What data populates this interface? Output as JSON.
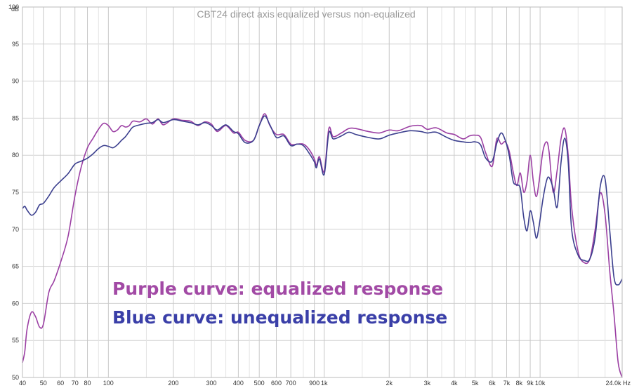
{
  "chart_data": {
    "type": "line",
    "title": "CBT24 direct axis equalized versus non-equalized",
    "x_scale": "log",
    "xlim": [
      40,
      24000
    ],
    "ylim": [
      50,
      100
    ],
    "grid": true,
    "ylabel": "dB",
    "xunit": "Hz",
    "y_ticks": [
      "100",
      "95",
      "90",
      "85",
      "80",
      "75",
      "70",
      "65",
      "60",
      "55",
      "50"
    ],
    "x_ticks": [
      {
        "value": 40,
        "label": "40"
      },
      {
        "value": 50,
        "label": "50"
      },
      {
        "value": 60,
        "label": "60"
      },
      {
        "value": 70,
        "label": "70"
      },
      {
        "value": 80,
        "label": "80"
      },
      {
        "value": 100,
        "label": "100"
      },
      {
        "value": 200,
        "label": "200"
      },
      {
        "value": 300,
        "label": "300"
      },
      {
        "value": 400,
        "label": "400"
      },
      {
        "value": 500,
        "label": "500"
      },
      {
        "value": 600,
        "label": "600"
      },
      {
        "value": 700,
        "label": "700"
      },
      {
        "value": 900,
        "label": "900"
      },
      {
        "value": 1000,
        "label": "1k"
      },
      {
        "value": 2000,
        "label": "2k"
      },
      {
        "value": 3000,
        "label": "3k"
      },
      {
        "value": 4000,
        "label": "4k"
      },
      {
        "value": 5000,
        "label": "5k"
      },
      {
        "value": 6000,
        "label": "6k"
      },
      {
        "value": 7000,
        "label": "7k"
      },
      {
        "value": 8000,
        "label": "8k"
      },
      {
        "value": 9000,
        "label": "9k"
      },
      {
        "value": 10000,
        "label": "10k"
      },
      {
        "value": 24000,
        "label": "24.0k Hz"
      }
    ],
    "minor_x_gridlines": [
      45,
      90,
      150,
      250,
      350,
      450,
      800,
      1500,
      2500,
      3500,
      4500,
      15000,
      20000
    ],
    "annotations": [
      {
        "text": "Purple curve: equalized response",
        "color": "#a24aa5"
      },
      {
        "text": "Blue curve: unequalized response",
        "color": "#3a3fa8"
      }
    ],
    "series": [
      {
        "color": "#9b3fa3",
        "x": [
          40,
          41,
          42,
          44,
          46,
          48,
          50,
          53,
          56,
          60,
          65,
          70,
          75,
          80,
          85,
          90,
          95,
          100,
          105,
          110,
          115,
          120,
          125,
          130,
          140,
          150,
          160,
          170,
          180,
          200,
          220,
          240,
          260,
          280,
          300,
          320,
          350,
          380,
          400,
          430,
          470,
          500,
          530,
          560,
          600,
          650,
          700,
          750,
          800,
          850,
          900,
          920,
          950,
          1000,
          1050,
          1100,
          1200,
          1300,
          1400,
          1600,
          1800,
          2000,
          2200,
          2500,
          2800,
          3000,
          3300,
          3700,
          4000,
          4400,
          4700,
          5000,
          5300,
          5600,
          6000,
          6300,
          6600,
          6900,
          7200,
          7500,
          7800,
          8100,
          8400,
          8700,
          9000,
          9300,
          9600,
          9900,
          10300,
          10700,
          11000,
          11500,
          12000,
          12500,
          13000,
          13500,
          14000,
          15000,
          16000,
          17000,
          18000,
          19000,
          20000,
          21000,
          22000,
          23000,
          24000
        ],
        "y": [
          52.0,
          53.5,
          56.5,
          58.8,
          58.2,
          56.8,
          57.2,
          61.5,
          63.0,
          65.5,
          69.0,
          74.5,
          78.5,
          81.0,
          82.3,
          83.5,
          84.3,
          84.0,
          83.2,
          83.4,
          84.0,
          83.8,
          84.0,
          84.6,
          84.5,
          84.9,
          84.2,
          84.9,
          84.1,
          84.9,
          84.7,
          84.6,
          84.0,
          84.5,
          84.2,
          83.2,
          84.0,
          83.0,
          83.1,
          82.0,
          82.0,
          84.0,
          85.6,
          84.0,
          82.8,
          82.8,
          81.5,
          81.5,
          81.5,
          80.8,
          79.5,
          78.6,
          79.8,
          77.8,
          83.6,
          82.5,
          83.0,
          83.6,
          83.6,
          83.2,
          83.0,
          83.4,
          83.3,
          83.9,
          84.0,
          83.5,
          83.7,
          83.0,
          82.8,
          82.2,
          82.6,
          82.7,
          82.4,
          80.3,
          78.5,
          82.2,
          81.5,
          81.8,
          80.5,
          77.8,
          75.9,
          77.6,
          75.0,
          76.5,
          80.0,
          76.5,
          74.4,
          76.5,
          80.5,
          81.8,
          80.5,
          75.0,
          78.0,
          82.2,
          83.6,
          80.0,
          73.0,
          67.0,
          65.5,
          66.0,
          70.0,
          74.9,
          72.0,
          64.5,
          58.5,
          52.0,
          50.0
        ]
      },
      {
        "color": "#3b3f8e",
        "x": [
          40,
          41,
          42,
          44,
          46,
          48,
          50,
          53,
          56,
          60,
          65,
          70,
          75,
          80,
          85,
          90,
          95,
          100,
          105,
          110,
          115,
          120,
          125,
          130,
          140,
          150,
          160,
          170,
          180,
          200,
          220,
          240,
          260,
          280,
          300,
          320,
          350,
          380,
          400,
          430,
          470,
          500,
          530,
          560,
          600,
          650,
          700,
          750,
          800,
          850,
          900,
          920,
          950,
          1000,
          1050,
          1100,
          1200,
          1300,
          1400,
          1600,
          1800,
          2000,
          2200,
          2500,
          2800,
          3000,
          3300,
          3700,
          4000,
          4400,
          4700,
          5000,
          5300,
          5600,
          6000,
          6300,
          6600,
          6900,
          7200,
          7500,
          7800,
          8100,
          8400,
          8700,
          9000,
          9300,
          9600,
          9900,
          10300,
          10700,
          11000,
          11500,
          12000,
          12500,
          13000,
          13500,
          14000,
          15000,
          16000,
          17000,
          18000,
          19000,
          20000,
          21000,
          22000,
          23000,
          24000
        ],
        "y": [
          72.8,
          73.1,
          72.6,
          71.9,
          72.3,
          73.3,
          73.5,
          74.5,
          75.6,
          76.5,
          77.5,
          78.8,
          79.2,
          79.6,
          80.2,
          80.9,
          81.3,
          81.2,
          81.0,
          81.4,
          82.0,
          82.5,
          83.2,
          83.8,
          84.1,
          84.3,
          84.4,
          84.8,
          84.4,
          84.8,
          84.6,
          84.4,
          84.1,
          84.4,
          84.0,
          83.4,
          84.1,
          83.2,
          82.9,
          81.7,
          82.0,
          84.0,
          85.3,
          84.1,
          82.4,
          82.6,
          81.3,
          81.5,
          81.3,
          80.3,
          79.1,
          78.3,
          79.5,
          77.4,
          83.0,
          82.2,
          82.6,
          83.1,
          82.8,
          82.4,
          82.2,
          82.7,
          83.0,
          83.3,
          83.2,
          83.0,
          83.1,
          82.4,
          82.0,
          81.8,
          81.7,
          81.8,
          81.4,
          79.6,
          79.2,
          81.6,
          83.0,
          82.0,
          79.9,
          76.5,
          76.0,
          75.5,
          71.6,
          69.8,
          72.5,
          71.0,
          68.8,
          70.5,
          74.0,
          76.5,
          77.0,
          75.5,
          73.0,
          79.0,
          82.3,
          79.0,
          70.0,
          66.5,
          65.8,
          66.0,
          69.0,
          75.8,
          76.8,
          70.0,
          63.5,
          62.5,
          63.3
        ]
      }
    ]
  }
}
